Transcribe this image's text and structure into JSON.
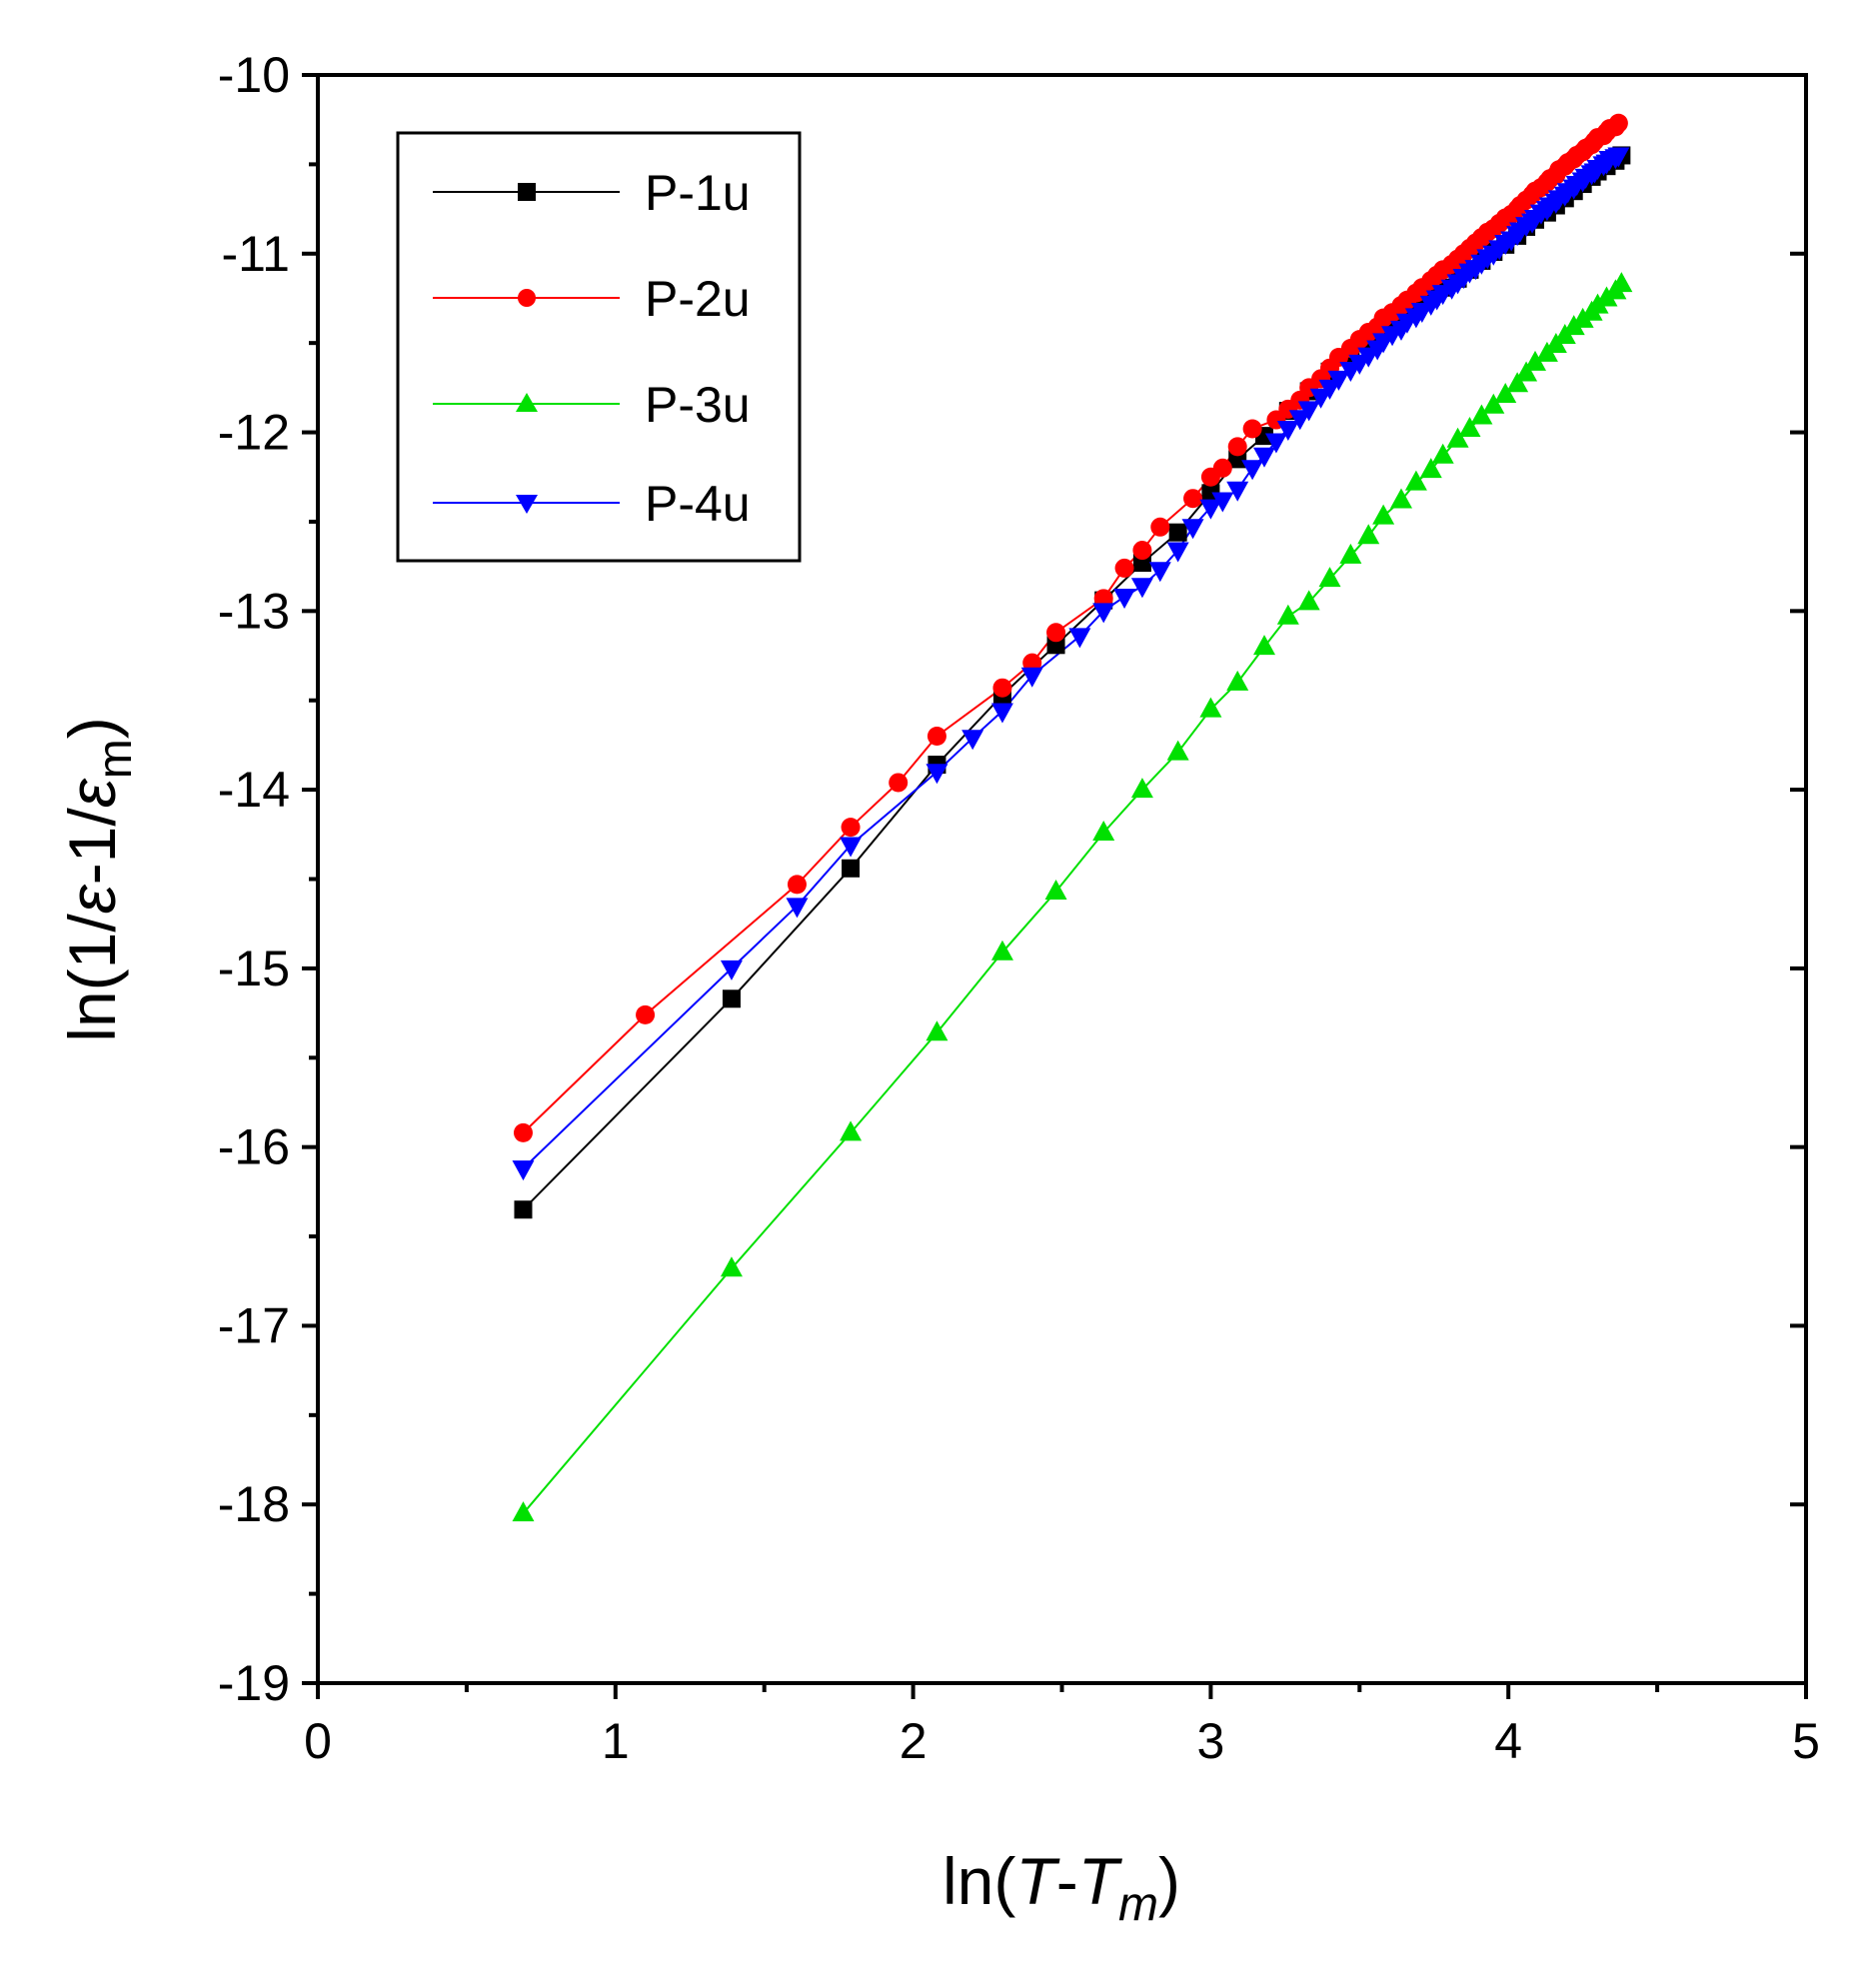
{
  "chart_data": {
    "type": "line",
    "title": "",
    "x_axis": {
      "label_parts": [
        "ln(",
        "T",
        "-",
        "T",
        "m",
        ")"
      ],
      "lim": [
        0,
        5
      ],
      "ticks": [
        0,
        1,
        2,
        3,
        4,
        5
      ],
      "tick_labels": [
        "0",
        "1",
        "2",
        "3",
        "4",
        "5"
      ]
    },
    "y_axis": {
      "label_parts": [
        "ln(1/",
        "ε",
        "-1/",
        "ε",
        "m",
        ")"
      ],
      "lim": [
        -19,
        -10
      ],
      "ticks": [
        -19,
        -18,
        -17,
        -16,
        -15,
        -14,
        -13,
        -12,
        -11,
        -10
      ],
      "tick_labels": [
        "-19",
        "-18",
        "-17",
        "-16",
        "-15",
        "-14",
        "-13",
        "-12",
        "-11",
        "-10"
      ]
    },
    "grid": false,
    "legend_position": "top-left",
    "series": [
      {
        "name": "P-1u",
        "color": "#000000",
        "marker": "square",
        "x": [
          0.69,
          1.39,
          1.79,
          2.08,
          2.3,
          2.48,
          2.64,
          2.77,
          2.89,
          3.0,
          3.09,
          3.18,
          3.26,
          3.33,
          3.4,
          3.47,
          3.53,
          3.58,
          3.64,
          3.69,
          3.74,
          3.78,
          3.83,
          3.87,
          3.91,
          3.95,
          3.99,
          4.03,
          4.06,
          4.09,
          4.13,
          4.16,
          4.19,
          4.22,
          4.25,
          4.28,
          4.3,
          4.33,
          4.36,
          4.38
        ],
        "y": [
          -16.35,
          -15.17,
          -14.44,
          -13.86,
          -13.47,
          -13.19,
          -12.94,
          -12.73,
          -12.56,
          -12.34,
          -12.15,
          -12.02,
          -11.88,
          -11.77,
          -11.66,
          -11.58,
          -11.5,
          -11.43,
          -11.36,
          -11.3,
          -11.24,
          -11.19,
          -11.14,
          -11.09,
          -11.04,
          -10.99,
          -10.95,
          -10.9,
          -10.85,
          -10.81,
          -10.77,
          -10.73,
          -10.69,
          -10.65,
          -10.61,
          -10.57,
          -10.54,
          -10.51,
          -10.48,
          -10.45
        ]
      },
      {
        "name": "P-2u",
        "color": "#ff0000",
        "marker": "circle",
        "x": [
          0.69,
          1.1,
          1.61,
          1.79,
          1.95,
          2.08,
          2.3,
          2.4,
          2.48,
          2.64,
          2.71,
          2.77,
          2.83,
          2.94,
          3.0,
          3.04,
          3.09,
          3.14,
          3.22,
          3.26,
          3.3,
          3.33,
          3.37,
          3.4,
          3.43,
          3.47,
          3.5,
          3.53,
          3.56,
          3.58,
          3.61,
          3.64,
          3.66,
          3.69,
          3.71,
          3.74,
          3.76,
          3.78,
          3.81,
          3.83,
          3.85,
          3.87,
          3.89,
          3.91,
          3.93,
          3.95,
          3.97,
          3.99,
          4.01,
          4.03,
          4.04,
          4.06,
          4.08,
          4.09,
          4.11,
          4.13,
          4.14,
          4.16,
          4.17,
          4.19,
          4.2,
          4.22,
          4.23,
          4.25,
          4.26,
          4.28,
          4.29,
          4.3,
          4.32,
          4.33,
          4.34,
          4.36,
          4.37
        ],
        "y": [
          -15.92,
          -15.26,
          -14.53,
          -14.21,
          -13.96,
          -13.7,
          -13.43,
          -13.29,
          -13.12,
          -12.93,
          -12.76,
          -12.66,
          -12.53,
          -12.37,
          -12.25,
          -12.2,
          -12.08,
          -11.98,
          -11.93,
          -11.87,
          -11.82,
          -11.75,
          -11.7,
          -11.64,
          -11.58,
          -11.53,
          -11.48,
          -11.44,
          -11.41,
          -11.36,
          -11.33,
          -11.29,
          -11.26,
          -11.22,
          -11.19,
          -11.15,
          -11.12,
          -11.09,
          -11.06,
          -11.03,
          -11.0,
          -10.97,
          -10.94,
          -10.91,
          -10.88,
          -10.86,
          -10.83,
          -10.8,
          -10.78,
          -10.75,
          -10.73,
          -10.7,
          -10.67,
          -10.65,
          -10.63,
          -10.6,
          -10.58,
          -10.56,
          -10.53,
          -10.51,
          -10.49,
          -10.47,
          -10.45,
          -10.43,
          -10.41,
          -10.39,
          -10.37,
          -10.35,
          -10.34,
          -10.32,
          -10.3,
          -10.29,
          -10.27
        ]
      },
      {
        "name": "P-3u",
        "color": "#00e000",
        "marker": "triangle-up",
        "x": [
          0.69,
          1.39,
          1.79,
          2.08,
          2.3,
          2.48,
          2.64,
          2.77,
          2.89,
          3.0,
          3.09,
          3.18,
          3.26,
          3.33,
          3.4,
          3.47,
          3.53,
          3.58,
          3.64,
          3.69,
          3.74,
          3.78,
          3.83,
          3.87,
          3.91,
          3.95,
          3.99,
          4.03,
          4.06,
          4.09,
          4.13,
          4.16,
          4.19,
          4.22,
          4.25,
          4.28,
          4.3,
          4.33,
          4.36,
          4.38
        ],
        "y": [
          -18.05,
          -16.68,
          -15.92,
          -15.36,
          -14.91,
          -14.57,
          -14.24,
          -14.0,
          -13.79,
          -13.55,
          -13.4,
          -13.2,
          -13.03,
          -12.95,
          -12.82,
          -12.69,
          -12.58,
          -12.47,
          -12.38,
          -12.28,
          -12.21,
          -12.13,
          -12.04,
          -11.98,
          -11.91,
          -11.85,
          -11.79,
          -11.73,
          -11.67,
          -11.61,
          -11.56,
          -11.51,
          -11.46,
          -11.41,
          -11.37,
          -11.33,
          -11.29,
          -11.25,
          -11.21,
          -11.17
        ]
      },
      {
        "name": "P-4u",
        "color": "#0000ff",
        "marker": "triangle-down",
        "x": [
          0.69,
          1.39,
          1.61,
          1.79,
          2.08,
          2.2,
          2.3,
          2.4,
          2.56,
          2.64,
          2.71,
          2.77,
          2.83,
          2.89,
          2.94,
          3.0,
          3.04,
          3.09,
          3.14,
          3.18,
          3.22,
          3.26,
          3.3,
          3.33,
          3.37,
          3.4,
          3.43,
          3.47,
          3.5,
          3.53,
          3.56,
          3.58,
          3.61,
          3.64,
          3.66,
          3.69,
          3.71,
          3.74,
          3.76,
          3.78,
          3.81,
          3.83,
          3.85,
          3.87,
          3.89,
          3.91,
          3.93,
          3.95,
          3.97,
          3.99,
          4.01,
          4.03,
          4.04,
          4.06,
          4.08,
          4.09,
          4.11,
          4.13,
          4.14,
          4.16,
          4.17,
          4.19,
          4.2,
          4.22,
          4.23,
          4.25,
          4.26,
          4.28,
          4.29,
          4.3,
          4.32,
          4.33,
          4.34,
          4.36,
          4.37
        ],
        "y": [
          -16.12,
          -15.0,
          -14.65,
          -14.31,
          -13.9,
          -13.71,
          -13.56,
          -13.36,
          -13.14,
          -13.0,
          -12.92,
          -12.86,
          -12.77,
          -12.66,
          -12.53,
          -12.42,
          -12.38,
          -12.32,
          -12.2,
          -12.13,
          -12.05,
          -11.98,
          -11.92,
          -11.87,
          -11.8,
          -11.75,
          -11.7,
          -11.65,
          -11.61,
          -11.57,
          -11.53,
          -11.49,
          -11.45,
          -11.42,
          -11.38,
          -11.35,
          -11.32,
          -11.28,
          -11.25,
          -11.22,
          -11.19,
          -11.16,
          -11.13,
          -11.1,
          -11.08,
          -11.05,
          -11.02,
          -11.0,
          -10.97,
          -10.94,
          -10.92,
          -10.89,
          -10.87,
          -10.84,
          -10.82,
          -10.8,
          -10.77,
          -10.75,
          -10.73,
          -10.71,
          -10.69,
          -10.67,
          -10.65,
          -10.63,
          -10.61,
          -10.59,
          -10.57,
          -10.55,
          -10.54,
          -10.52,
          -10.5,
          -10.49,
          -10.47,
          -10.46,
          -10.45
        ]
      }
    ]
  }
}
